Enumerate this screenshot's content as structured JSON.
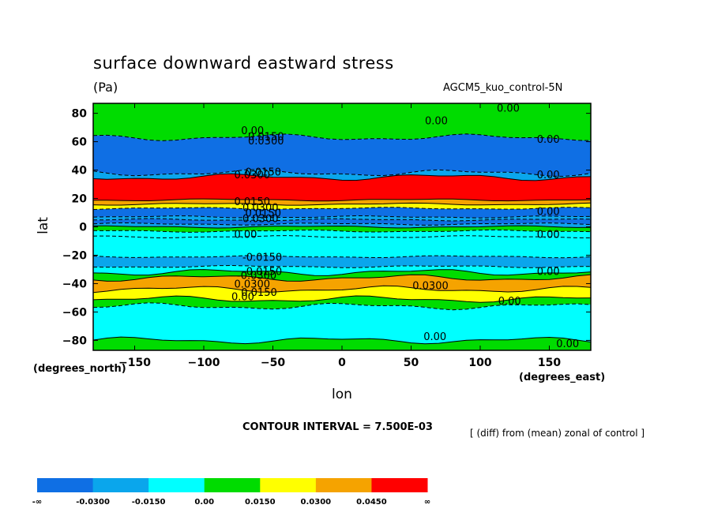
{
  "header": {
    "title": "surface downward eastward stress",
    "units": "(Pa)",
    "run": "AGCM5_kuo_control-5N",
    "x_unit": "(degrees_east)",
    "y_unit": "(degrees_north)",
    "contour_interval": "CONTOUR INTERVAL = 7.500E-03",
    "diff_note": "[ (diff) from (mean) zonal of control ]"
  },
  "colors": {
    "lt_neg_030": "#0f6fe4",
    "neg_030_015": "#0aa6ec",
    "neg_015_0": "#00ffff",
    "0_015": "#00dc00",
    "015_030": "#ffff00",
    "030_045": "#f5a300",
    "gt_045": "#ff0000"
  },
  "chart_data": {
    "type": "contour",
    "title": "surface downward eastward stress",
    "xlabel": "lon",
    "ylabel": "lat",
    "xlim": [
      -180,
      180
    ],
    "ylim": [
      -87,
      87
    ],
    "x_ticks": [
      -150,
      -100,
      -50,
      0,
      50,
      100,
      150
    ],
    "y_ticks": [
      80,
      60,
      40,
      20,
      0,
      -20,
      -40,
      -60,
      -80
    ],
    "contour_interval": 0.0075,
    "colorbar": {
      "levels": [
        "-∞",
        "-0.0300",
        "-0.0150",
        "0.00",
        "0.0150",
        "0.0300",
        "0.0450",
        "∞"
      ],
      "colors": [
        "#0f6fe4",
        "#0aa6ec",
        "#00ffff",
        "#00dc00",
        "#ffff00",
        "#f5a300",
        "#ff0000"
      ]
    },
    "bands": [
      {
        "lat_top": 87,
        "lat_bottom": 63,
        "value_class": "0_015"
      },
      {
        "lat_top": 63,
        "lat_bottom": 38,
        "value_class": "lt_neg_030"
      },
      {
        "lat_top": 38,
        "lat_bottom": 35,
        "value_class": "neg_030_015"
      },
      {
        "lat_top": 35,
        "lat_bottom": 19,
        "value_class": "gt_045"
      },
      {
        "lat_top": 19,
        "lat_bottom": 16,
        "value_class": "030_045"
      },
      {
        "lat_top": 16,
        "lat_bottom": 13,
        "value_class": "015_030"
      },
      {
        "lat_top": 13,
        "lat_bottom": 7,
        "value_class": "lt_neg_030"
      },
      {
        "lat_top": 7,
        "lat_bottom": 5,
        "value_class": "neg_030_015"
      },
      {
        "lat_top": 5,
        "lat_bottom": 2,
        "value_class": "lt_neg_030"
      },
      {
        "lat_top": 2,
        "lat_bottom": 0,
        "value_class": "neg_030_015"
      },
      {
        "lat_top": 0,
        "lat_bottom": -3,
        "value_class": "0_015"
      },
      {
        "lat_top": -3,
        "lat_bottom": -7,
        "value_class": "neg_015_0"
      },
      {
        "lat_top": -7,
        "lat_bottom": -21,
        "value_class": "neg_015_0"
      },
      {
        "lat_top": -21,
        "lat_bottom": -28,
        "value_class": "neg_030_015"
      },
      {
        "lat_top": -28,
        "lat_bottom": -32,
        "value_class": "neg_015_0"
      },
      {
        "lat_top": -32,
        "lat_bottom": -36,
        "value_class": "0_015"
      },
      {
        "lat_top": -36,
        "lat_bottom": -44,
        "value_class": "030_045"
      },
      {
        "lat_top": -44,
        "lat_bottom": -51,
        "value_class": "015_030"
      },
      {
        "lat_top": -51,
        "lat_bottom": -56,
        "value_class": "0_015"
      },
      {
        "lat_top": -56,
        "lat_bottom": -80,
        "value_class": "neg_015_0"
      },
      {
        "lat_top": -80,
        "lat_bottom": -87,
        "value_class": "0_015"
      }
    ],
    "contour_labels": [
      {
        "text": "0.00",
        "lon": 112,
        "lat": 84
      },
      {
        "text": "0.00",
        "lon": 60,
        "lat": 75
      },
      {
        "text": "0.00",
        "lon": -73,
        "lat": 68
      },
      {
        "text": "0.0300",
        "lon": -68,
        "lat": 61
      },
      {
        "text": "0.0150",
        "lon": -68,
        "lat": 64
      },
      {
        "text": "0.00",
        "lon": 141,
        "lat": 62
      },
      {
        "text": "0.0150",
        "lon": -70,
        "lat": 39
      },
      {
        "text": "0.0300",
        "lon": -78,
        "lat": 37
      },
      {
        "text": "0.00",
        "lon": 141,
        "lat": 37
      },
      {
        "text": "0.0150",
        "lon": -78,
        "lat": 18
      },
      {
        "text": "0.0300",
        "lon": -72,
        "lat": 14
      },
      {
        "text": "0.0150",
        "lon": -70,
        "lat": 10
      },
      {
        "text": "0.0300",
        "lon": -72,
        "lat": 6
      },
      {
        "text": "0.00",
        "lon": -78,
        "lat": -5
      },
      {
        "text": "0.00",
        "lon": 141,
        "lat": 11
      },
      {
        "text": "0.00",
        "lon": 141,
        "lat": -5
      },
      {
        "text": "-0.0150",
        "lon": -72,
        "lat": -21
      },
      {
        "text": "-0.0150",
        "lon": -72,
        "lat": -31
      },
      {
        "text": "-0.0300",
        "lon": -76,
        "lat": -34
      },
      {
        "text": "0.0300",
        "lon": -78,
        "lat": -40
      },
      {
        "text": "0.0150",
        "lon": -73,
        "lat": -46
      },
      {
        "text": "0.00",
        "lon": -80,
        "lat": -49
      },
      {
        "text": "0.0300",
        "lon": 51,
        "lat": -41
      },
      {
        "text": "0.00",
        "lon": 141,
        "lat": -31
      },
      {
        "text": "0.00",
        "lon": 113,
        "lat": -52
      },
      {
        "text": "0.00",
        "lon": 59,
        "lat": -77
      },
      {
        "text": "0.00",
        "lon": 155,
        "lat": -82
      }
    ]
  }
}
